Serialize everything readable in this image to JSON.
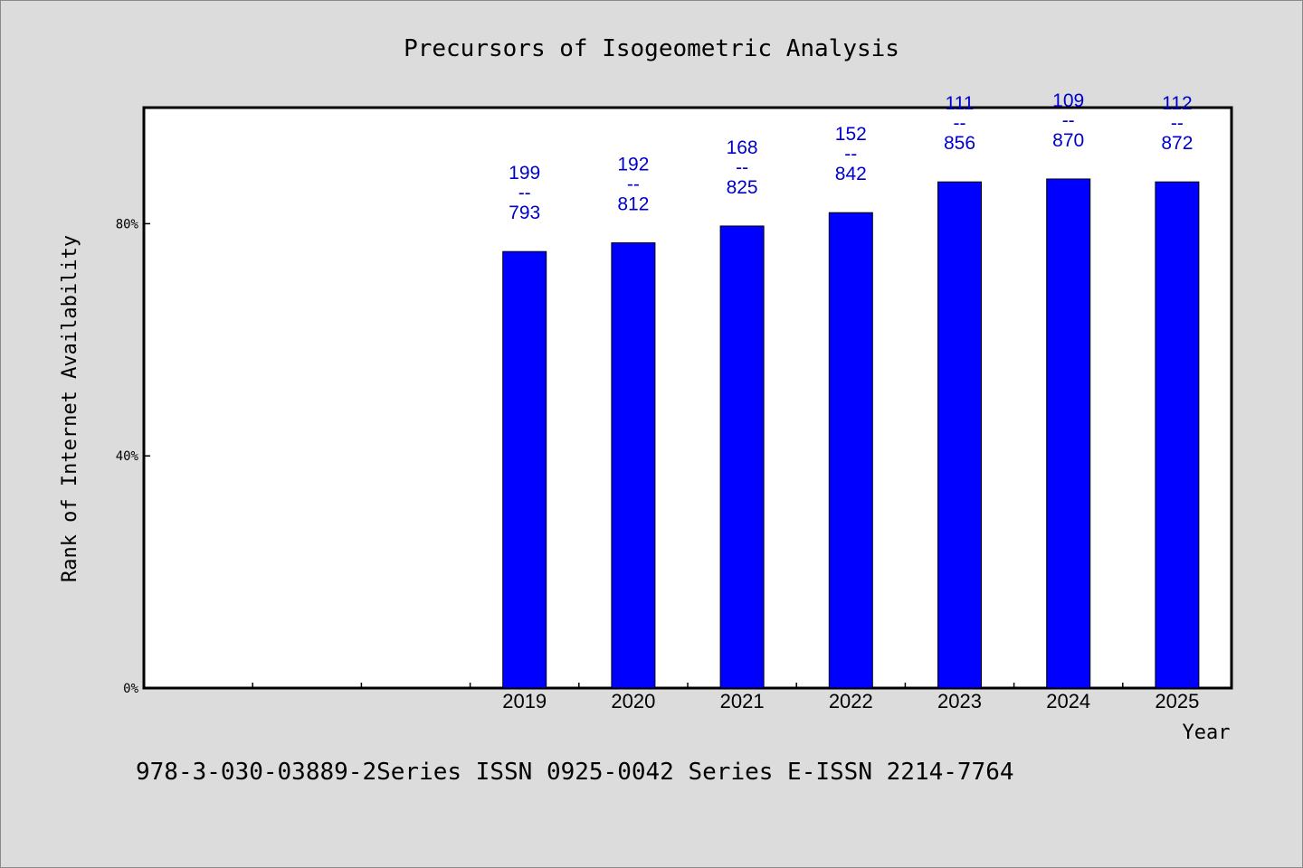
{
  "chart_data": {
    "type": "bar",
    "title": "Precursors of Isogeometric Analysis",
    "xlabel": "Year",
    "ylabel": "Rank of Internet Availability",
    "categories": [
      "",
      "",
      "",
      "2019",
      "2020",
      "2021",
      "2022",
      "2023",
      "2024",
      "2025"
    ],
    "values": [
      null,
      null,
      null,
      75.2,
      76.7,
      79.6,
      81.9,
      87.2,
      87.7,
      87.2
    ],
    "bar_labels": [
      null,
      null,
      null,
      [
        "199",
        "--",
        "793"
      ],
      [
        "192",
        "--",
        "812"
      ],
      [
        "168",
        "--",
        "825"
      ],
      [
        "152",
        "--",
        "842"
      ],
      [
        "111",
        "--",
        "856"
      ],
      [
        "109",
        "--",
        "870"
      ],
      [
        "112",
        "--",
        "872"
      ]
    ],
    "yticks": [
      0,
      40,
      80
    ],
    "ytick_labels": [
      "0%",
      "40%",
      "80%"
    ],
    "ylim": [
      0,
      100
    ],
    "grid": false,
    "legend": "none",
    "bar_color": "#0000ff",
    "label_color": "#0000cc",
    "plot_background": "#ffffff",
    "page_background": "#dcdcdc"
  },
  "footnote": "978-3-030-03889-2Series ISSN 0925-0042 Series E-ISSN 2214-7764"
}
